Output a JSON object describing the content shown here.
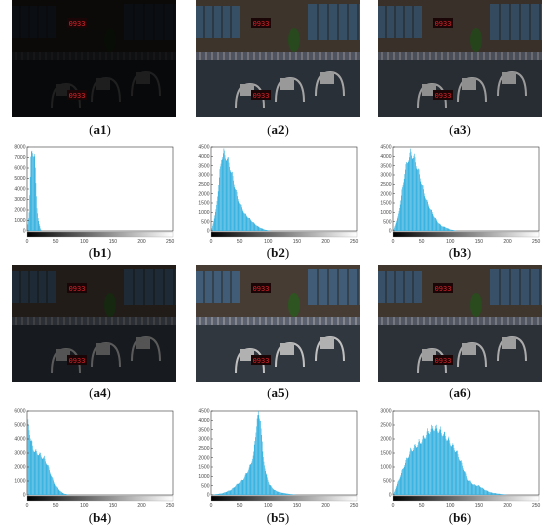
{
  "photo_captions": [
    "a1",
    "a2",
    "a3",
    "a4",
    "a5",
    "a6"
  ],
  "photo_brightness": [
    0.12,
    0.62,
    0.58,
    0.34,
    0.72,
    0.64
  ],
  "clock_text": "0933",
  "colors": {
    "bar": "#3bb3e0",
    "clock": "#e0202a",
    "axis": "#333333"
  },
  "chart_data": [
    {
      "type": "bar",
      "name": "b1",
      "caption": "b1",
      "xlim": [
        0,
        255
      ],
      "ylim": [
        0,
        8000
      ],
      "xticks": [
        0,
        50,
        100,
        150,
        200,
        250
      ],
      "yticks": [
        0,
        1000,
        2000,
        3000,
        4000,
        5000,
        6000,
        7000,
        8000
      ],
      "profile": [
        [
          0,
          0
        ],
        [
          3,
          2000
        ],
        [
          6,
          7600
        ],
        [
          9,
          8000
        ],
        [
          13,
          8000
        ],
        [
          15,
          4600
        ],
        [
          17,
          2400
        ],
        [
          19,
          1400
        ],
        [
          21,
          700
        ],
        [
          23,
          250
        ],
        [
          25,
          0
        ]
      ],
      "grid": false
    },
    {
      "type": "bar",
      "name": "b2",
      "caption": "b2",
      "xlim": [
        0,
        255
      ],
      "ylim": [
        0,
        4500
      ],
      "xticks": [
        0,
        50,
        100,
        150,
        200,
        250
      ],
      "yticks": [
        0,
        500,
        1000,
        1500,
        2000,
        2500,
        3000,
        3500,
        4000,
        4500
      ],
      "profile": [
        [
          0,
          0
        ],
        [
          8,
          1200
        ],
        [
          14,
          3000
        ],
        [
          18,
          4300
        ],
        [
          22,
          4500
        ],
        [
          28,
          4200
        ],
        [
          34,
          3600
        ],
        [
          40,
          2800
        ],
        [
          46,
          2000
        ],
        [
          52,
          1400
        ],
        [
          58,
          1000
        ],
        [
          64,
          800
        ],
        [
          70,
          600
        ],
        [
          76,
          400
        ],
        [
          82,
          250
        ],
        [
          88,
          150
        ],
        [
          95,
          60
        ],
        [
          105,
          0
        ]
      ],
      "grid": false
    },
    {
      "type": "bar",
      "name": "b3",
      "caption": "b3",
      "xlim": [
        0,
        255
      ],
      "ylim": [
        0,
        4500
      ],
      "xticks": [
        0,
        50,
        100,
        150,
        200,
        250
      ],
      "yticks": [
        0,
        500,
        1000,
        1500,
        2000,
        2500,
        3000,
        3500,
        4000,
        4500
      ],
      "profile": [
        [
          0,
          0
        ],
        [
          8,
          800
        ],
        [
          14,
          2000
        ],
        [
          20,
          3400
        ],
        [
          26,
          4200
        ],
        [
          31,
          4500
        ],
        [
          36,
          4300
        ],
        [
          42,
          3700
        ],
        [
          48,
          3000
        ],
        [
          54,
          2200
        ],
        [
          60,
          1600
        ],
        [
          66,
          1200
        ],
        [
          72,
          800
        ],
        [
          78,
          500
        ],
        [
          84,
          300
        ],
        [
          92,
          200
        ],
        [
          100,
          80
        ],
        [
          112,
          0
        ]
      ],
      "grid": false
    },
    {
      "type": "bar",
      "name": "b4",
      "caption": "b4",
      "xlim": [
        0,
        255
      ],
      "ylim": [
        0,
        6000
      ],
      "xticks": [
        0,
        50,
        100,
        150,
        200,
        250
      ],
      "yticks": [
        0,
        1000,
        2000,
        3000,
        4000,
        5000,
        6000
      ],
      "profile": [
        [
          0,
          5800
        ],
        [
          3,
          5200
        ],
        [
          6,
          4200
        ],
        [
          10,
          3600
        ],
        [
          15,
          3300
        ],
        [
          20,
          3200
        ],
        [
          25,
          3000
        ],
        [
          30,
          2800
        ],
        [
          35,
          2400
        ],
        [
          40,
          1800
        ],
        [
          45,
          1200
        ],
        [
          50,
          700
        ],
        [
          55,
          400
        ],
        [
          60,
          200
        ],
        [
          65,
          80
        ],
        [
          75,
          0
        ]
      ],
      "grid": false
    },
    {
      "type": "bar",
      "name": "b5",
      "caption": "b5",
      "xlim": [
        0,
        255
      ],
      "ylim": [
        0,
        4500
      ],
      "xticks": [
        0,
        50,
        100,
        150,
        200,
        250
      ],
      "yticks": [
        0,
        500,
        1000,
        1500,
        2000,
        2500,
        3000,
        3500,
        4000,
        4500
      ],
      "profile": [
        [
          0,
          0
        ],
        [
          20,
          100
        ],
        [
          35,
          300
        ],
        [
          45,
          600
        ],
        [
          55,
          900
        ],
        [
          62,
          1300
        ],
        [
          68,
          1700
        ],
        [
          74,
          2400
        ],
        [
          80,
          4500
        ],
        [
          86,
          4500
        ],
        [
          90,
          2400
        ],
        [
          96,
          1200
        ],
        [
          102,
          600
        ],
        [
          110,
          300
        ],
        [
          120,
          150
        ],
        [
          135,
          60
        ],
        [
          150,
          0
        ]
      ],
      "grid": false
    },
    {
      "type": "bar",
      "name": "b6",
      "caption": "b6",
      "xlim": [
        0,
        255
      ],
      "ylim": [
        0,
        3000
      ],
      "xticks": [
        0,
        50,
        100,
        150,
        200,
        250
      ],
      "yticks": [
        0,
        500,
        1000,
        1500,
        2000,
        2500,
        3000
      ],
      "profile": [
        [
          0,
          0
        ],
        [
          10,
          600
        ],
        [
          20,
          1200
        ],
        [
          30,
          1700
        ],
        [
          40,
          1900
        ],
        [
          50,
          2100
        ],
        [
          60,
          2400
        ],
        [
          70,
          2600
        ],
        [
          80,
          2500
        ],
        [
          90,
          2300
        ],
        [
          100,
          2000
        ],
        [
          110,
          1700
        ],
        [
          120,
          1200
        ],
        [
          130,
          600
        ],
        [
          140,
          400
        ],
        [
          150,
          350
        ],
        [
          160,
          200
        ],
        [
          170,
          100
        ],
        [
          180,
          60
        ],
        [
          200,
          0
        ]
      ],
      "grid": false
    }
  ]
}
